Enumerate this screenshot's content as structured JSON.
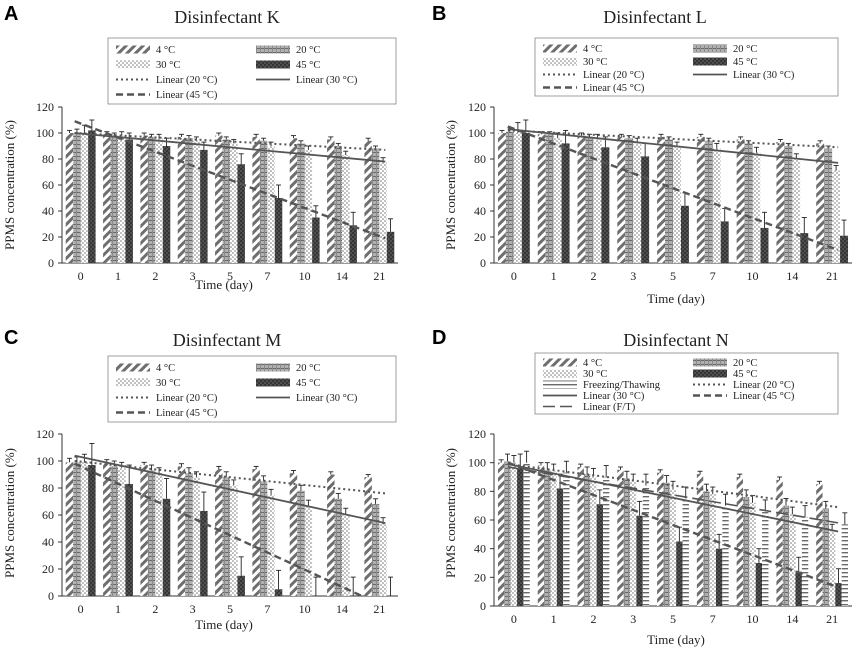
{
  "figure": {
    "x_categories": [
      "0",
      "1",
      "2",
      "3",
      "5",
      "7",
      "10",
      "14",
      "21"
    ],
    "y_ticks": [
      "0",
      "20",
      "40",
      "60",
      "80",
      "100",
      "120"
    ],
    "xlabel": "Time (day)",
    "ylabel": "PPMS concentration (%)"
  },
  "colors": {
    "bar_4": "#6e6e6e",
    "bar_20": "#9a9a9a",
    "bar_30": "#c9c9c9",
    "bar_45": "#505050",
    "bar_ft": "#8a8a8a",
    "trend": "#555555"
  },
  "chart_data": [
    {
      "type": "bar",
      "panel": "A",
      "title": "Disinfectant K",
      "categories": [
        "0",
        "1",
        "2",
        "3",
        "5",
        "7",
        "10",
        "14",
        "21"
      ],
      "ylim": [
        0,
        120
      ],
      "xlabel": "Time (day)",
      "ylabel": "PPMS concentration (%)",
      "legend": [
        "4 °C",
        "20 °C",
        "30 °C",
        "45 °C",
        "Linear (20 °C)",
        "Linear (30 °C)",
        "Linear (45 °C)"
      ],
      "series": [
        {
          "name": "4 °C",
          "values": [
            100,
            99,
            98,
            97,
            98,
            97,
            96,
            95,
            94
          ],
          "errors": [
            2,
            2,
            2,
            2,
            2,
            2,
            2,
            2,
            2
          ]
        },
        {
          "name": "20 °C",
          "values": [
            100,
            98,
            97,
            96,
            95,
            94,
            92,
            90,
            88
          ],
          "errors": [
            3,
            2,
            2,
            2,
            2,
            2,
            2,
            2,
            2
          ]
        },
        {
          "name": "30 °C",
          "values": [
            100,
            98,
            96,
            94,
            92,
            90,
            87,
            83,
            78
          ],
          "errors": [
            6,
            3,
            3,
            3,
            3,
            3,
            3,
            3,
            3
          ]
        },
        {
          "name": "45 °C",
          "values": [
            102,
            95,
            90,
            87,
            76,
            50,
            35,
            29,
            24
          ],
          "errors": [
            8,
            5,
            6,
            6,
            8,
            10,
            9,
            10,
            10
          ]
        }
      ],
      "trends": [
        {
          "name": "Linear (20 °C)",
          "start": 100,
          "end": 87
        },
        {
          "name": "Linear (30 °C)",
          "start": 100,
          "end": 78
        },
        {
          "name": "Linear (45 °C)",
          "start": 109,
          "end": 19
        }
      ]
    },
    {
      "type": "bar",
      "panel": "B",
      "title": "Disinfectant L",
      "categories": [
        "0",
        "1",
        "2",
        "3",
        "5",
        "7",
        "10",
        "14",
        "21"
      ],
      "ylim": [
        0,
        120
      ],
      "xlabel": "Time (day)",
      "ylabel": "PPMS concentration (%)",
      "legend": [
        "4 °C",
        "20 °C",
        "30 °C",
        "45 °C",
        "Linear (20 °C)",
        "Linear (30 °C)",
        "Linear (45 °C)"
      ],
      "series": [
        {
          "name": "4 °C",
          "values": [
            100,
            99,
            98,
            97,
            97,
            97,
            95,
            93,
            92
          ],
          "errors": [
            2,
            2,
            2,
            2,
            2,
            2,
            2,
            2,
            2
          ]
        },
        {
          "name": "20 °C",
          "values": [
            101,
            99,
            97,
            96,
            95,
            94,
            92,
            90,
            88
          ],
          "errors": [
            3,
            2,
            2,
            2,
            2,
            2,
            2,
            2,
            2
          ]
        },
        {
          "name": "30 °C",
          "values": [
            100,
            96,
            95,
            92,
            90,
            88,
            85,
            80,
            71
          ],
          "errors": [
            8,
            4,
            4,
            4,
            3,
            4,
            4,
            4,
            4
          ]
        },
        {
          "name": "45 °C",
          "values": [
            100,
            92,
            89,
            82,
            44,
            32,
            27,
            23,
            21
          ],
          "errors": [
            10,
            10,
            8,
            10,
            10,
            10,
            12,
            12,
            12
          ]
        }
      ],
      "trends": [
        {
          "name": "Linear (20 °C)",
          "start": 102,
          "end": 89
        },
        {
          "name": "Linear (30 °C)",
          "start": 103,
          "end": 77
        },
        {
          "name": "Linear (45 °C)",
          "start": 105,
          "end": 10
        }
      ]
    },
    {
      "type": "bar",
      "panel": "C",
      "title": "Disinfectant M",
      "categories": [
        "0",
        "1",
        "2",
        "3",
        "5",
        "7",
        "10",
        "14",
        "21"
      ],
      "ylim": [
        0,
        120
      ],
      "xlabel": "Time (day)",
      "ylabel": "PPMS concentration (%)",
      "legend": [
        "4 °C",
        "20 °C",
        "30 °C",
        "45 °C",
        "Linear (20 °C)",
        "Linear (30 °C)",
        "Linear (45 °C)"
      ],
      "series": [
        {
          "name": "4 °C",
          "values": [
            99,
            98,
            97,
            96,
            94,
            94,
            91,
            90,
            88
          ],
          "errors": [
            3,
            3,
            2,
            2,
            2,
            2,
            2,
            2,
            2
          ]
        },
        {
          "name": "20 °C",
          "values": [
            99,
            96,
            93,
            91,
            88,
            85,
            78,
            72,
            68
          ],
          "errors": [
            4,
            4,
            4,
            4,
            4,
            4,
            4,
            4,
            4
          ]
        },
        {
          "name": "30 °C",
          "values": [
            99,
            95,
            91,
            88,
            82,
            75,
            66,
            60,
            53
          ],
          "errors": [
            6,
            4,
            4,
            4,
            4,
            4,
            5,
            5,
            5
          ]
        },
        {
          "name": "45 °C",
          "values": [
            97,
            83,
            72,
            63,
            15,
            5,
            0,
            0,
            0
          ],
          "errors": [
            16,
            14,
            15,
            14,
            14,
            14,
            14,
            14,
            14
          ]
        }
      ],
      "trends": [
        {
          "name": "Linear (20 °C)",
          "start": 100,
          "end": 76
        },
        {
          "name": "Linear (30 °C)",
          "start": 104,
          "end": 54
        },
        {
          "name": "Linear (45 °C)",
          "start": 98,
          "end": -8
        }
      ]
    },
    {
      "type": "bar",
      "panel": "D",
      "title": "Disinfectant N",
      "categories": [
        "0",
        "1",
        "2",
        "3",
        "5",
        "7",
        "10",
        "14",
        "21"
      ],
      "ylim": [
        0,
        120
      ],
      "xlabel": "Time (day)",
      "ylabel": "PPMS concentration (%)",
      "legend": [
        "4 °C",
        "20 °C",
        "30 °C",
        "45 °C",
        "Freezing/Thawing",
        "Linear (20 °C)",
        "Linear (30 °C)",
        "Linear (45 °C)",
        "Linear (F/T)"
      ],
      "series": [
        {
          "name": "4 °C",
          "values": [
            100,
            98,
            97,
            95,
            93,
            92,
            90,
            88,
            85
          ],
          "errors": [
            2,
            2,
            2,
            2,
            2,
            2,
            2,
            2,
            2
          ]
        },
        {
          "name": "20 °C",
          "values": [
            101,
            95,
            92,
            89,
            86,
            80,
            76,
            70,
            68
          ],
          "errors": [
            5,
            5,
            5,
            5,
            5,
            5,
            5,
            5,
            5
          ]
        },
        {
          "name": "30 °C",
          "values": [
            100,
            94,
            91,
            87,
            82,
            78,
            72,
            64,
            52
          ],
          "errors": [
            5,
            5,
            5,
            5,
            5,
            5,
            5,
            5,
            5
          ]
        },
        {
          "name": "45 °C",
          "values": [
            96,
            82,
            71,
            63,
            45,
            40,
            30,
            24,
            16
          ],
          "errors": [
            10,
            10,
            10,
            10,
            10,
            10,
            10,
            10,
            10
          ]
        },
        {
          "name": "Freezing/Thawing",
          "values": [
            100,
            93,
            90,
            84,
            75,
            70,
            66,
            62,
            57
          ],
          "errors": [
            8,
            8,
            8,
            8,
            8,
            8,
            8,
            8,
            8
          ]
        }
      ],
      "trends": [
        {
          "name": "Linear (20 °C)",
          "start": 99,
          "end": 69
        },
        {
          "name": "Linear (30 °C)",
          "start": 99,
          "end": 52
        },
        {
          "name": "Linear (45 °C)",
          "start": 100,
          "end": 13
        },
        {
          "name": "Linear (F/T)",
          "start": 97,
          "end": 58
        }
      ]
    }
  ]
}
